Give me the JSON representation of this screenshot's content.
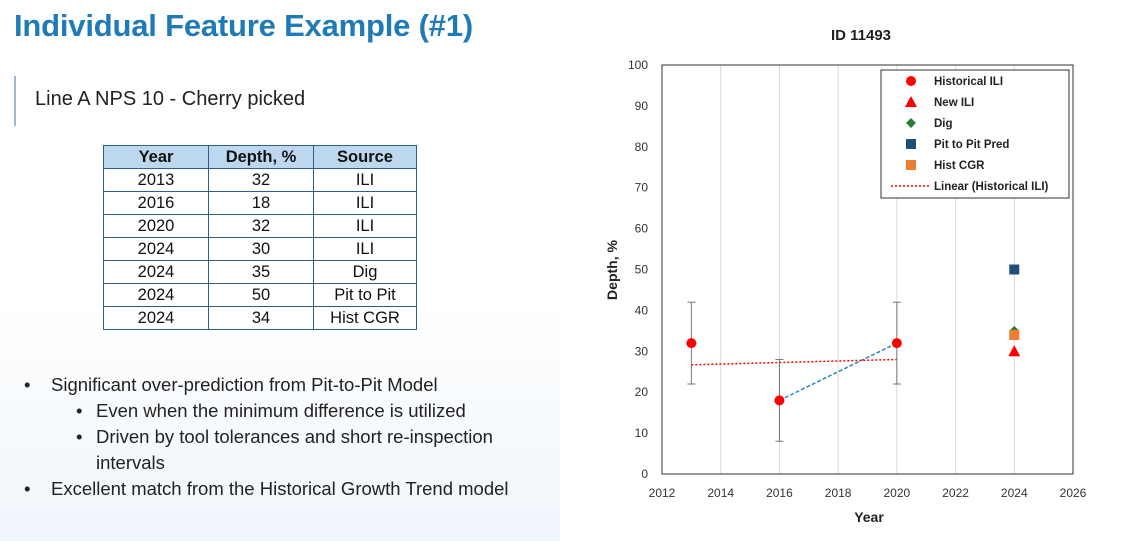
{
  "title": "Individual Feature Example (#1)",
  "subtitle": "Line A NPS 10 - Cherry picked",
  "table": {
    "headers": [
      "Year",
      "Depth, %",
      "Source"
    ],
    "rows": [
      [
        "2013",
        "32",
        "ILI"
      ],
      [
        "2016",
        "18",
        "ILI"
      ],
      [
        "2020",
        "32",
        "ILI"
      ],
      [
        "2024",
        "30",
        "ILI"
      ],
      [
        "2024",
        "35",
        "Dig"
      ],
      [
        "2024",
        "50",
        "Pit to Pit"
      ],
      [
        "2024",
        "34",
        "Hist CGR"
      ]
    ]
  },
  "bullets": {
    "b1": "Significant over-prediction from Pit-to-Pit Model",
    "b1a": "Even when the minimum difference is utilized",
    "b1b": "Driven by tool tolerances  and short re-inspection intervals",
    "b2": "Excellent match from the Historical Growth Trend model"
  },
  "chart_data": {
    "type": "scatter",
    "title": "ID 11493",
    "xlabel": "Year",
    "ylabel": "Depth, %",
    "xlim": [
      2012,
      2026
    ],
    "ylim": [
      0,
      100
    ],
    "xticks": [
      2012,
      2014,
      2016,
      2018,
      2020,
      2022,
      2024,
      2026
    ],
    "yticks": [
      0,
      10,
      20,
      30,
      40,
      50,
      60,
      70,
      80,
      90,
      100
    ],
    "grid": "vertical",
    "legend_position": "top-right",
    "series": [
      {
        "name": "Historical ILI",
        "marker": "circle",
        "color": "#ff0000",
        "points": [
          {
            "x": 2013,
            "y": 32
          },
          {
            "x": 2016,
            "y": 18
          },
          {
            "x": 2020,
            "y": 32
          }
        ],
        "error": [
          10,
          10,
          10
        ]
      },
      {
        "name": "New ILI",
        "marker": "triangle",
        "color": "#ff0000",
        "points": [
          {
            "x": 2024,
            "y": 30
          }
        ]
      },
      {
        "name": "Dig",
        "marker": "diamond",
        "color": "#2e7d32",
        "points": [
          {
            "x": 2024,
            "y": 35
          }
        ]
      },
      {
        "name": "Pit to Pit Pred",
        "marker": "square",
        "color": "#1f4e79",
        "points": [
          {
            "x": 2024,
            "y": 50
          }
        ]
      },
      {
        "name": "Hist CGR",
        "marker": "square",
        "color": "#ed7d31",
        "points": [
          {
            "x": 2024,
            "y": 34
          }
        ]
      },
      {
        "name": "Linear (Historical ILI)",
        "marker": "line-dotted",
        "color": "#ff0000",
        "points": [
          {
            "x": 2013,
            "y": 26.7
          },
          {
            "x": 2020,
            "y": 28
          }
        ]
      }
    ],
    "extra_lines": [
      {
        "style": "dashed",
        "color": "#2e86c1",
        "points": [
          {
            "x": 2016,
            "y": 18
          },
          {
            "x": 2020,
            "y": 32
          }
        ]
      }
    ]
  }
}
